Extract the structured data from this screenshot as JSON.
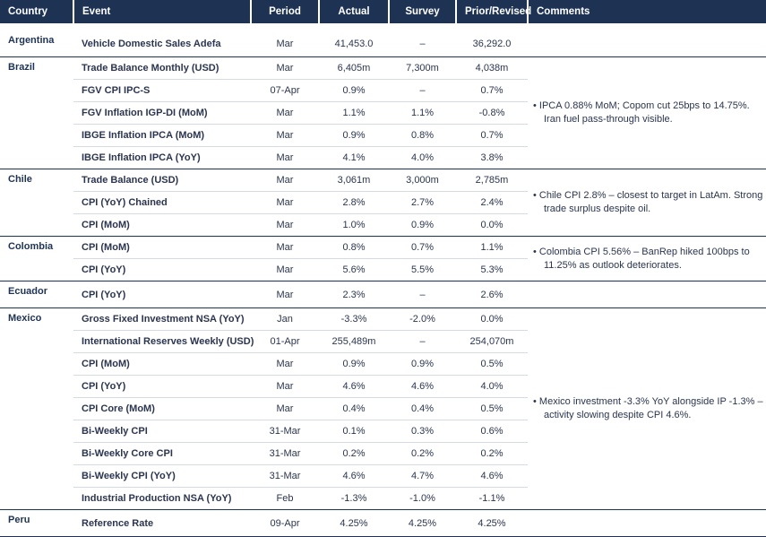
{
  "headers": {
    "country": "Country",
    "event": "Event",
    "period": "Period",
    "actual": "Actual",
    "survey": "Survey",
    "prior": "Prior/Revised",
    "comments": "Comments"
  },
  "groups": [
    {
      "country": "Argentina",
      "comment": "",
      "rows": [
        {
          "event": "Vehicle Domestic Sales Adefa",
          "period": "Mar",
          "actual": "41,453.0",
          "survey": "–",
          "prior": "36,292.0"
        }
      ]
    },
    {
      "country": "Brazil",
      "comment": "• IPCA 0.88% MoM; Copom cut 25bps to 14.75%. Iran fuel pass-through visible.",
      "rows": [
        {
          "event": "Trade Balance Monthly (USD)",
          "period": "Mar",
          "actual": "6,405m",
          "survey": "7,300m",
          "prior": "4,038m"
        },
        {
          "event": "FGV CPI IPC-S",
          "period": "07-Apr",
          "actual": "0.9%",
          "survey": "–",
          "prior": "0.7%"
        },
        {
          "event": "FGV Inflation IGP-DI (MoM)",
          "period": "Mar",
          "actual": "1.1%",
          "survey": "1.1%",
          "prior": "-0.8%"
        },
        {
          "event": "IBGE Inflation IPCA (MoM)",
          "period": "Mar",
          "actual": "0.9%",
          "survey": "0.8%",
          "prior": "0.7%"
        },
        {
          "event": "IBGE Inflation IPCA (YoY)",
          "period": "Mar",
          "actual": "4.1%",
          "survey": "4.0%",
          "prior": "3.8%"
        }
      ]
    },
    {
      "country": "Chile",
      "comment": "• Chile CPI 2.8% – closest to target in LatAm. Strong trade surplus despite oil.",
      "rows": [
        {
          "event": "Trade Balance (USD)",
          "period": "Mar",
          "actual": "3,061m",
          "survey": "3,000m",
          "prior": "2,785m"
        },
        {
          "event": "CPI (YoY) Chained",
          "period": "Mar",
          "actual": "2.8%",
          "survey": "2.7%",
          "prior": "2.4%"
        },
        {
          "event": "CPI (MoM)",
          "period": "Mar",
          "actual": "1.0%",
          "survey": "0.9%",
          "prior": "0.0%"
        }
      ]
    },
    {
      "country": "Colombia",
      "comment": "• Colombia CPI 5.56% – BanRep hiked 100bps to 11.25% as outlook deteriorates.",
      "rows": [
        {
          "event": "CPI (MoM)",
          "period": "Mar",
          "actual": "0.8%",
          "survey": "0.7%",
          "prior": "1.1%"
        },
        {
          "event": "CPI (YoY)",
          "period": "Mar",
          "actual": "5.6%",
          "survey": "5.5%",
          "prior": "5.3%"
        }
      ]
    },
    {
      "country": "Ecuador",
      "comment": "",
      "rows": [
        {
          "event": "CPI (YoY)",
          "period": "Mar",
          "actual": "2.3%",
          "survey": "–",
          "prior": "2.6%"
        }
      ]
    },
    {
      "country": "Mexico",
      "comment": "• Mexico investment -3.3% YoY alongside IP -1.3% – activity slowing despite CPI 4.6%.",
      "rows": [
        {
          "event": "Gross Fixed Investment NSA (YoY)",
          "period": "Jan",
          "actual": "-3.3%",
          "survey": "-2.0%",
          "prior": "0.0%"
        },
        {
          "event": "International Reserves Weekly (USD)",
          "period": "01-Apr",
          "actual": "255,489m",
          "survey": "–",
          "prior": "254,070m"
        },
        {
          "event": "CPI (MoM)",
          "period": "Mar",
          "actual": "0.9%",
          "survey": "0.9%",
          "prior": "0.5%"
        },
        {
          "event": "CPI (YoY)",
          "period": "Mar",
          "actual": "4.6%",
          "survey": "4.6%",
          "prior": "4.0%"
        },
        {
          "event": "CPI Core (MoM)",
          "period": "Mar",
          "actual": "0.4%",
          "survey": "0.4%",
          "prior": "0.5%"
        },
        {
          "event": "Bi-Weekly CPI",
          "period": "31-Mar",
          "actual": "0.1%",
          "survey": "0.3%",
          "prior": "0.6%"
        },
        {
          "event": "Bi-Weekly Core CPI",
          "period": "31-Mar",
          "actual": "0.2%",
          "survey": "0.2%",
          "prior": "0.2%"
        },
        {
          "event": "Bi-Weekly CPI (YoY)",
          "period": "31-Mar",
          "actual": "4.6%",
          "survey": "4.7%",
          "prior": "4.6%"
        },
        {
          "event": "Industrial Production NSA (YoY)",
          "period": "Feb",
          "actual": "-1.3%",
          "survey": "-1.0%",
          "prior": "-1.1%"
        }
      ]
    },
    {
      "country": "Peru",
      "comment": "",
      "rows": [
        {
          "event": "Reference Rate",
          "period": "09-Apr",
          "actual": "4.25%",
          "survey": "4.25%",
          "prior": "4.25%"
        }
      ]
    }
  ]
}
